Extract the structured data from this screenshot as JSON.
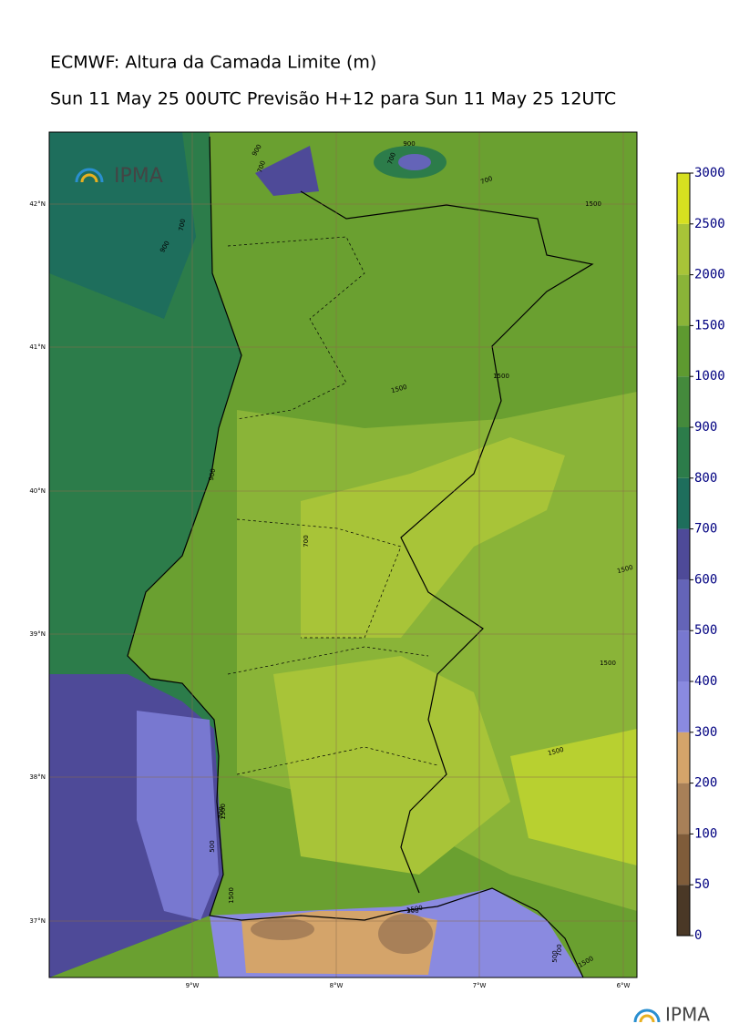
{
  "header": {
    "title": "ECMWF: Altura da Camada Limite (m)",
    "subtitle": "Sun 11 May 25 00UTC Previsão H+12 para Sun 11 May 25 12UTC"
  },
  "logos": [
    "IPMA",
    "IPMA"
  ],
  "map": {
    "lat_labels": [
      "42°N",
      "41°N",
      "40°N",
      "39°N",
      "38°N",
      "37°N"
    ],
    "lon_labels": [
      "9°W",
      "8°W",
      "7°W",
      "6°W"
    ],
    "contour_labels": [
      "900",
      "700",
      "700",
      "900",
      "700",
      "900",
      "700",
      "900",
      "1500",
      "1500",
      "1500",
      "700",
      "1500",
      "1500",
      "1500",
      "1500",
      "1500",
      "700",
      "500",
      "1500",
      "300",
      "500",
      "700",
      "1500"
    ]
  },
  "colorbar": {
    "ticks": [
      0,
      50,
      100,
      200,
      300,
      400,
      500,
      600,
      700,
      800,
      900,
      1000,
      1500,
      2000,
      2500,
      3000
    ],
    "colors": [
      "#4a3826",
      "#7f5c3a",
      "#a88058",
      "#d4a46a",
      "#8a8ae0",
      "#7878d0",
      "#6464b8",
      "#4e4a98",
      "#1e6e5c",
      "#2c7c4a",
      "#448a3c",
      "#5e9a30",
      "#8ab438",
      "#a8c438",
      "#d6e020"
    ]
  }
}
